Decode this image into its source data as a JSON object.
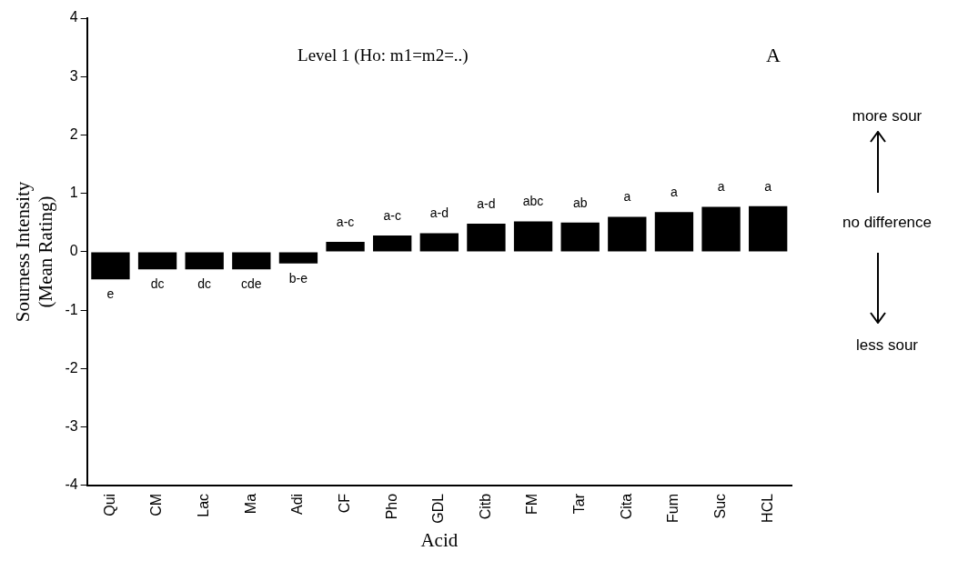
{
  "chart_data": {
    "type": "bar",
    "title": "Level 1 (Ho: m1=m2=..)",
    "xlabel": "Acid",
    "ylabel": "Sourness Intensity\n(Mean Rating)",
    "categories": [
      "Qui",
      "CM",
      "Lac",
      "Ma",
      "Adi",
      "CF",
      "Pho",
      "GDL",
      "Citb",
      "FM",
      "Tar",
      "Cita",
      "Fum",
      "Suc",
      "HCL"
    ],
    "values": [
      -0.47,
      -0.3,
      -0.3,
      -0.3,
      -0.2,
      0.17,
      0.28,
      0.32,
      0.48,
      0.52,
      0.5,
      0.6,
      0.68,
      0.77,
      0.78
    ],
    "value_labels": [
      "e",
      "dc",
      "dc",
      "cde",
      "b-e",
      "a-c",
      "a-c",
      "a-d",
      "a-d",
      "abc",
      "ab",
      "a",
      "a",
      "a",
      "a"
    ],
    "color": "#000000",
    "ylim": [
      -4,
      4
    ],
    "yticks": [
      -4,
      -3,
      -2,
      -1,
      0,
      1,
      2,
      3,
      4
    ],
    "grid": false,
    "legend": false,
    "annotations": [
      "A",
      "more sour",
      "no difference",
      "less sour"
    ]
  }
}
